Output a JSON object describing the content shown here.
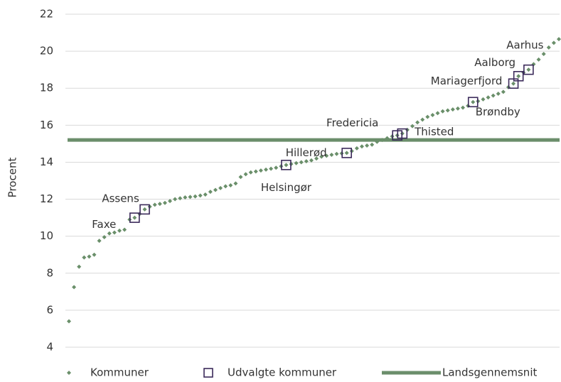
{
  "chart_data": {
    "type": "scatter",
    "y_label": "Procent",
    "ylim": [
      4,
      22
    ],
    "yticks": [
      4,
      6,
      8,
      10,
      12,
      14,
      16,
      18,
      20,
      22
    ],
    "grid": true,
    "legend": "bottom",
    "series": [
      {
        "name": "Kommuner",
        "color": "#6a8f6a",
        "marker": "diamond",
        "values": [
          5.4,
          7.25,
          8.35,
          8.85,
          8.9,
          9.0,
          9.75,
          9.95,
          10.15,
          10.2,
          10.3,
          10.35,
          10.9,
          11.0,
          11.2,
          11.45,
          11.6,
          11.7,
          11.75,
          11.8,
          11.9,
          12.0,
          12.05,
          12.1,
          12.12,
          12.15,
          12.2,
          12.25,
          12.4,
          12.5,
          12.6,
          12.7,
          12.75,
          12.85,
          13.2,
          13.35,
          13.45,
          13.5,
          13.55,
          13.6,
          13.65,
          13.7,
          13.78,
          13.85,
          13.9,
          13.95,
          14.0,
          14.05,
          14.1,
          14.2,
          14.3,
          14.35,
          14.4,
          14.45,
          14.48,
          14.5,
          14.6,
          14.75,
          14.85,
          14.9,
          14.95,
          15.1,
          15.2,
          15.3,
          15.4,
          15.45,
          15.55,
          15.75,
          15.95,
          16.15,
          16.3,
          16.45,
          16.55,
          16.65,
          16.75,
          16.8,
          16.85,
          16.9,
          16.95,
          17.05,
          17.25,
          17.3,
          17.4,
          17.5,
          17.6,
          17.7,
          17.8,
          18.05,
          18.25,
          18.65,
          18.85,
          19.0,
          19.3,
          19.55,
          19.85,
          20.2,
          20.45,
          20.65
        ]
      },
      {
        "name": "Udvalgte kommuner",
        "color": "#3b2a5a",
        "marker": "square",
        "values": [
          null,
          null,
          null,
          null,
          null,
          null,
          null,
          null,
          null,
          null,
          null,
          null,
          null,
          11.0,
          null,
          11.45,
          null,
          null,
          null,
          null,
          null,
          null,
          null,
          null,
          null,
          null,
          null,
          null,
          null,
          null,
          null,
          null,
          null,
          null,
          null,
          null,
          null,
          null,
          null,
          null,
          null,
          null,
          null,
          13.85,
          null,
          null,
          null,
          null,
          null,
          null,
          null,
          null,
          null,
          null,
          null,
          14.5,
          null,
          null,
          null,
          null,
          null,
          null,
          null,
          null,
          null,
          15.45,
          15.55,
          null,
          null,
          null,
          null,
          null,
          null,
          null,
          null,
          null,
          null,
          null,
          null,
          null,
          17.25,
          null,
          null,
          null,
          null,
          null,
          null,
          null,
          18.25,
          18.65,
          null,
          19.0,
          null,
          null,
          null,
          null,
          null,
          null
        ],
        "point_labels": [
          null,
          null,
          null,
          null,
          null,
          null,
          null,
          null,
          null,
          null,
          null,
          null,
          null,
          "Faxe",
          null,
          "Assens",
          null,
          null,
          null,
          null,
          null,
          null,
          null,
          null,
          null,
          null,
          null,
          null,
          null,
          null,
          null,
          null,
          null,
          null,
          null,
          null,
          null,
          null,
          null,
          null,
          null,
          null,
          null,
          "Helsingør",
          null,
          null,
          null,
          null,
          null,
          null,
          null,
          null,
          null,
          null,
          null,
          "Hillerød",
          null,
          null,
          null,
          null,
          null,
          null,
          null,
          null,
          null,
          "Fredericia",
          "Thisted",
          null,
          null,
          null,
          null,
          null,
          null,
          null,
          null,
          null,
          null,
          null,
          null,
          null,
          "Brøndby",
          null,
          null,
          null,
          null,
          null,
          null,
          null,
          "Mariagerfjord",
          "Aalborg",
          null,
          "Aarhus",
          null,
          null,
          null,
          null,
          null,
          null
        ]
      },
      {
        "name": "Landsgennemsnit",
        "color": "#6b8e6b",
        "marker": "line",
        "value": 15.2
      }
    ]
  }
}
